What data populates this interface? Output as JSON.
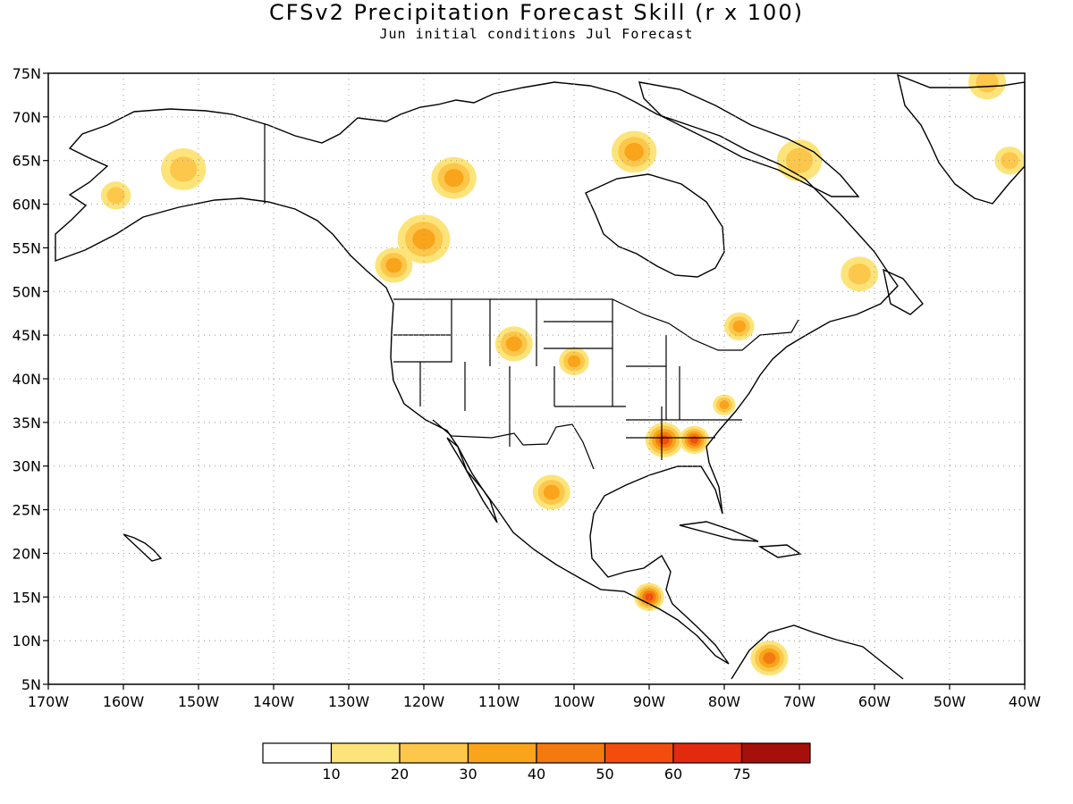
{
  "title": "CFSv2 Precipitation Forecast Skill (r x 100)",
  "subtitle": "Jun initial conditions  Jul Forecast",
  "colors": {
    "bins": [
      "#ffffff",
      "#fde47a",
      "#fcc74a",
      "#f9a41a",
      "#f47a10",
      "#f24d0c",
      "#e22a0e",
      "#a6100a"
    ],
    "land_outline": "#000000",
    "grid": "#999999"
  },
  "map": {
    "lat_labels": [
      "75N",
      "70N",
      "65N",
      "60N",
      "55N",
      "50N",
      "45N",
      "40N",
      "35N",
      "30N",
      "25N",
      "20N",
      "15N",
      "10N",
      "5N"
    ],
    "lon_labels": [
      "170W",
      "160W",
      "150W",
      "140W",
      "130W",
      "120W",
      "110W",
      "100W",
      "90W",
      "80W",
      "70W",
      "60W",
      "50W",
      "40W"
    ],
    "lat_range": [
      5,
      75
    ],
    "lon_range": [
      -170,
      -40
    ],
    "gridlines": "dotted"
  },
  "colorbar": {
    "labels": [
      "10",
      "20",
      "30",
      "40",
      "50",
      "60",
      "75"
    ]
  },
  "skill_regions": [
    {
      "lon": -120,
      "lat": 56,
      "level": 3,
      "r": 3.5
    },
    {
      "lon": -124,
      "lat": 53,
      "level": 3,
      "r": 2.5
    },
    {
      "lon": -116,
      "lat": 63,
      "level": 3,
      "r": 3
    },
    {
      "lon": -92,
      "lat": 66,
      "level": 3,
      "r": 3
    },
    {
      "lon": -88,
      "lat": 33,
      "level": 5,
      "r": 2.5
    },
    {
      "lon": -84,
      "lat": 33,
      "level": 5,
      "r": 2
    },
    {
      "lon": -103,
      "lat": 27,
      "level": 3,
      "r": 2.5
    },
    {
      "lon": -90,
      "lat": 15,
      "level": 5,
      "r": 2
    },
    {
      "lon": -74,
      "lat": 8,
      "level": 4,
      "r": 2.5
    },
    {
      "lon": -80,
      "lat": 37,
      "level": 3,
      "r": 1.5
    },
    {
      "lon": -78,
      "lat": 46,
      "level": 3,
      "r": 2
    },
    {
      "lon": -152,
      "lat": 64,
      "level": 2,
      "r": 3
    },
    {
      "lon": -161,
      "lat": 61,
      "level": 2,
      "r": 2
    },
    {
      "lon": -108,
      "lat": 44,
      "level": 3,
      "r": 2.5
    },
    {
      "lon": -100,
      "lat": 42,
      "level": 3,
      "r": 2
    },
    {
      "lon": -62,
      "lat": 52,
      "level": 2,
      "r": 2.5
    },
    {
      "lon": -70,
      "lat": 65,
      "level": 2,
      "r": 3
    },
    {
      "lon": -45,
      "lat": 74,
      "level": 2,
      "r": 2.5
    },
    {
      "lon": -42,
      "lat": 65,
      "level": 2,
      "r": 2
    }
  ]
}
